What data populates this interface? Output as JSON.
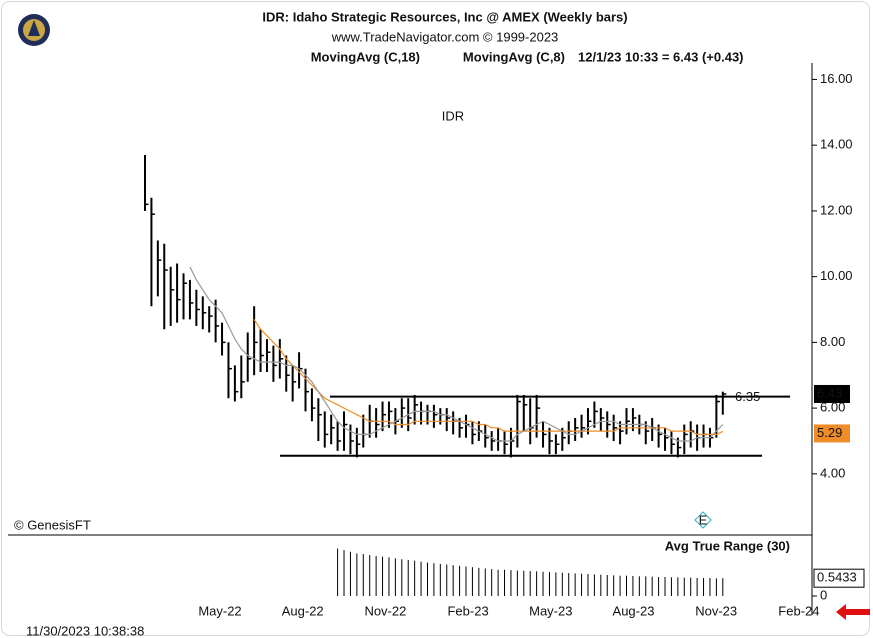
{
  "header": {
    "title": "IDR:  Idaho Strategic Resources, Inc @ AMEX  (Weekly bars)",
    "source": "www.TradeNavigator.com © 1999-2023",
    "timestamp": "11/30/2023 10:38:38"
  },
  "chart_data": {
    "type": "ohlc",
    "watermark": "IDR",
    "credit": "© GenesisFT",
    "quote": "12/1/23 10:33 = 6.43 (+0.43)",
    "ylim": [
      2.2,
      16.5
    ],
    "yticks": [
      {
        "value": 4,
        "label": "4.00"
      },
      {
        "value": 6,
        "label": "6.00"
      },
      {
        "value": 8,
        "label": "8.00"
      },
      {
        "value": 10,
        "label": "10.00"
      },
      {
        "value": 12,
        "label": "12.00"
      },
      {
        "value": 14,
        "label": "14.00"
      },
      {
        "value": 16,
        "label": "16.00"
      }
    ],
    "xtick_labels": [
      "May-22",
      "Aug-22",
      "Nov-22",
      "Feb-23",
      "May-23",
      "Aug-23",
      "Nov-23",
      "Feb-24"
    ],
    "color": "#000000",
    "high": [
      13.7,
      12.4,
      11.1,
      11.0,
      10.3,
      10.4,
      10.1,
      9.9,
      9.6,
      9.4,
      9.1,
      9.3,
      8.6,
      8.0,
      7.3,
      7.6,
      8.3,
      9.1,
      8.4,
      8.1,
      7.9,
      8.1,
      7.6,
      7.3,
      7.7,
      7.2,
      6.6,
      6.3,
      5.9,
      5.8,
      5.6,
      5.9,
      5.5,
      5.4,
      5.8,
      6.1,
      6.0,
      6.2,
      6.2,
      6.0,
      6.3,
      6.3,
      6.4,
      6.2,
      6.1,
      6.1,
      6.0,
      6.0,
      5.9,
      5.7,
      5.8,
      5.6,
      5.6,
      5.5,
      5.3,
      5.4,
      5.3,
      5.4,
      6.4,
      6.4,
      6.3,
      6.4,
      5.6,
      5.4,
      5.2,
      5.4,
      5.6,
      5.7,
      5.8,
      6.0,
      6.2,
      6.0,
      5.9,
      5.8,
      5.6,
      6.0,
      6.0,
      5.8,
      5.6,
      5.7,
      5.5,
      5.4,
      5.3,
      5.1,
      5.5,
      5.6,
      5.5,
      5.5,
      5.4,
      6.4,
      6.5
    ],
    "low": [
      12.0,
      9.1,
      9.4,
      8.4,
      8.5,
      8.6,
      8.7,
      8.7,
      8.5,
      8.4,
      8.3,
      8.0,
      7.6,
      6.3,
      6.2,
      6.3,
      6.8,
      7.0,
      7.1,
      7.1,
      6.8,
      6.9,
      6.5,
      6.2,
      6.6,
      5.9,
      5.6,
      5.0,
      4.8,
      4.9,
      4.7,
      4.7,
      4.6,
      4.5,
      4.8,
      5.1,
      5.1,
      5.3,
      5.4,
      5.2,
      5.4,
      5.3,
      5.5,
      5.5,
      5.5,
      5.4,
      5.5,
      5.3,
      5.2,
      5.1,
      5.1,
      4.9,
      5.0,
      4.8,
      4.7,
      4.7,
      4.6,
      4.5,
      4.8,
      5.3,
      4.9,
      5.1,
      4.8,
      4.6,
      4.6,
      4.7,
      4.9,
      5.0,
      5.1,
      5.2,
      5.4,
      5.3,
      5.1,
      5.0,
      4.9,
      5.2,
      5.3,
      5.2,
      4.9,
      5.0,
      4.8,
      4.7,
      4.6,
      4.5,
      4.6,
      4.8,
      4.7,
      4.8,
      4.8,
      5.1,
      5.8
    ],
    "close": [
      12.2,
      11.9,
      10.5,
      10.2,
      9.6,
      9.3,
      9.8,
      9.2,
      9.0,
      8.9,
      8.8,
      8.5,
      8.0,
      7.2,
      6.5,
      6.8,
      7.5,
      8.0,
      7.6,
      7.7,
      7.3,
      7.5,
      7.0,
      6.8,
      7.2,
      6.5,
      6.0,
      5.8,
      5.2,
      5.4,
      5.0,
      5.5,
      5.0,
      4.9,
      5.2,
      5.6,
      5.5,
      5.8,
      5.9,
      5.6,
      6.0,
      5.7,
      6.1,
      5.9,
      5.9,
      5.8,
      5.8,
      5.7,
      5.6,
      5.4,
      5.5,
      5.2,
      5.3,
      5.1,
      5.0,
      5.0,
      4.9,
      5.0,
      6.2,
      6.1,
      5.4,
      6.0,
      5.2,
      5.0,
      4.9,
      5.1,
      5.3,
      5.4,
      5.4,
      5.6,
      5.9,
      5.7,
      5.5,
      5.4,
      5.3,
      5.6,
      5.7,
      5.5,
      5.3,
      5.4,
      5.2,
      5.1,
      4.9,
      4.8,
      5.2,
      5.3,
      5.1,
      5.2,
      5.1,
      6.2,
      6.43
    ],
    "series": [
      {
        "name": "MovingAvg (C,18)",
        "color": "#f08c28",
        "values": [
          null,
          null,
          null,
          null,
          null,
          null,
          null,
          null,
          null,
          null,
          null,
          null,
          null,
          null,
          null,
          null,
          null,
          8.7,
          8.4,
          8.2,
          8.0,
          7.8,
          7.5,
          7.3,
          7.1,
          6.9,
          6.7,
          6.5,
          6.3,
          6.2,
          6.1,
          6.0,
          5.9,
          5.8,
          5.7,
          5.6,
          5.6,
          5.6,
          5.6,
          5.5,
          5.5,
          5.5,
          5.6,
          5.6,
          5.6,
          5.6,
          5.6,
          5.6,
          5.6,
          5.6,
          5.6,
          5.6,
          5.5,
          5.5,
          5.4,
          5.4,
          5.3,
          5.3,
          5.3,
          5.3,
          5.3,
          5.3,
          5.3,
          5.3,
          5.3,
          5.3,
          5.3,
          5.3,
          5.3,
          5.3,
          5.3,
          5.3,
          5.3,
          5.3,
          5.4,
          5.4,
          5.4,
          5.4,
          5.4,
          5.4,
          5.4,
          5.4,
          5.3,
          5.3,
          5.3,
          5.3,
          5.2,
          5.2,
          5.2,
          5.2,
          5.29
        ]
      },
      {
        "name": "MovingAvg (C,8)",
        "color": "#999999",
        "values": [
          null,
          null,
          null,
          null,
          null,
          null,
          null,
          10.3,
          9.9,
          9.6,
          9.3,
          9.1,
          8.9,
          8.5,
          8.1,
          7.8,
          7.6,
          7.5,
          7.4,
          7.4,
          7.4,
          7.4,
          7.3,
          7.3,
          7.2,
          7.0,
          6.8,
          6.5,
          6.2,
          5.9,
          5.6,
          5.4,
          5.3,
          5.2,
          5.2,
          5.2,
          5.3,
          5.4,
          5.5,
          5.6,
          5.7,
          5.8,
          5.9,
          5.9,
          5.9,
          5.9,
          5.8,
          5.8,
          5.7,
          5.6,
          5.5,
          5.4,
          5.3,
          5.2,
          5.1,
          5.0,
          5.0,
          5.0,
          5.2,
          5.3,
          5.4,
          5.5,
          5.6,
          5.5,
          5.4,
          5.3,
          5.2,
          5.2,
          5.3,
          5.4,
          5.5,
          5.6,
          5.6,
          5.6,
          5.5,
          5.5,
          5.5,
          5.5,
          5.5,
          5.4,
          5.3,
          5.2,
          5.1,
          5.0,
          5.0,
          5.0,
          5.1,
          5.1,
          5.1,
          5.3,
          5.5
        ]
      }
    ],
    "levels": [
      6.35,
      4.55
    ],
    "atr": {
      "title": "Avg True Range (30)",
      "ylim": [
        0,
        1.8
      ],
      "yticks": [
        0
      ],
      "color": "#000000",
      "values": [
        null,
        null,
        null,
        null,
        null,
        null,
        null,
        null,
        null,
        null,
        null,
        null,
        null,
        null,
        null,
        null,
        null,
        null,
        null,
        null,
        null,
        null,
        null,
        null,
        null,
        null,
        null,
        null,
        null,
        null,
        1.45,
        1.4,
        1.35,
        1.3,
        1.28,
        1.25,
        1.22,
        1.2,
        1.18,
        1.15,
        1.12,
        1.1,
        1.08,
        1.05,
        1.02,
        1.0,
        0.98,
        0.96,
        0.94,
        0.92,
        0.9,
        0.88,
        0.86,
        0.84,
        0.82,
        0.8,
        0.8,
        0.79,
        0.78,
        0.77,
        0.76,
        0.75,
        0.74,
        0.73,
        0.72,
        0.71,
        0.7,
        0.69,
        0.68,
        0.67,
        0.66,
        0.65,
        0.64,
        0.63,
        0.62,
        0.62,
        0.61,
        0.6,
        0.6,
        0.59,
        0.58,
        0.58,
        0.57,
        0.57,
        0.56,
        0.56,
        0.55,
        0.55,
        0.55,
        0.54,
        0.5433
      ]
    }
  }
}
